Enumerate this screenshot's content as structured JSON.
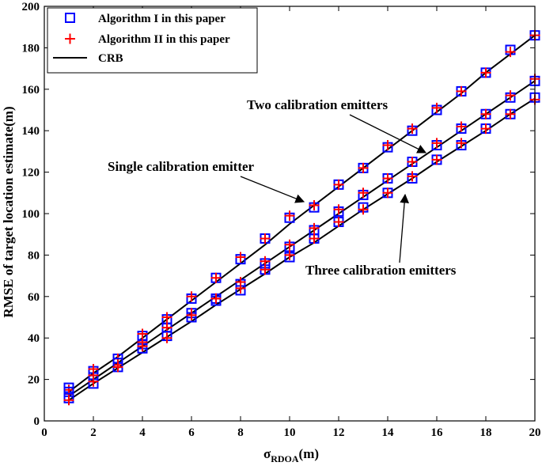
{
  "chart_data": {
    "type": "line",
    "xlabel": "σ",
    "xlabel_sub": "RDOA",
    "xlabel_unit": "(m)",
    "ylabel": "RMSE of target location estimate(m)",
    "xlim": [
      0,
      20
    ],
    "ylim": [
      0,
      200
    ],
    "xticks": [
      0,
      2,
      4,
      6,
      8,
      10,
      12,
      14,
      16,
      18,
      20
    ],
    "yticks": [
      0,
      20,
      40,
      60,
      80,
      100,
      120,
      140,
      160,
      180,
      200
    ],
    "grid": false,
    "legend_position": "top-left",
    "legend": [
      {
        "label": "Algorithm I in this paper",
        "marker": "square",
        "color": "#0000ff"
      },
      {
        "label": "Algorithm II in this paper",
        "marker": "plus",
        "color": "#ff0000"
      },
      {
        "label": "CRB",
        "marker": "line",
        "color": "#000000"
      }
    ],
    "x": [
      1,
      2,
      3,
      4,
      5,
      6,
      7,
      8,
      9,
      10,
      11,
      12,
      13,
      14,
      15,
      16,
      17,
      18,
      19,
      20
    ],
    "groups": [
      {
        "annotation": "Single calibration emitter",
        "crb": [
          14,
          23,
          31,
          40,
          49,
          58,
          67,
          76,
          85,
          95,
          104,
          113,
          122,
          131,
          140,
          149,
          158,
          168,
          177,
          186
        ],
        "algorithm1": [
          16,
          24,
          30,
          41,
          49,
          59,
          69,
          78,
          88,
          98,
          103,
          114,
          122,
          132,
          140,
          150,
          159,
          168,
          179,
          186
        ],
        "algorithm2": [
          15,
          25,
          30,
          42,
          50,
          60,
          69,
          79,
          88,
          99,
          104,
          114,
          122,
          133,
          141,
          151,
          159,
          168,
          178,
          186
        ]
      },
      {
        "annotation": "Two calibration emitters",
        "crb": [
          12,
          20,
          28,
          36,
          44,
          52,
          60,
          68,
          76,
          84,
          92,
          100,
          108,
          116,
          124,
          132,
          140,
          148,
          156,
          164
        ],
        "algorithm1": [
          14,
          21,
          28,
          37,
          45,
          52,
          59,
          66,
          76,
          84,
          92,
          101,
          109,
          117,
          125,
          133,
          141,
          148,
          156,
          164
        ],
        "algorithm2": [
          13,
          22,
          27,
          38,
          45,
          52,
          59,
          67,
          77,
          85,
          93,
          102,
          110,
          117,
          125,
          134,
          142,
          148,
          157,
          165
        ]
      },
      {
        "annotation": "Three calibration emitters",
        "crb": [
          10,
          18,
          25.5,
          33,
          40.5,
          48,
          56,
          63.5,
          71,
          79,
          86,
          94,
          102,
          109.5,
          117,
          125,
          132.5,
          140,
          148,
          155.5
        ],
        "algorithm1": [
          11,
          18,
          26,
          35,
          41,
          50,
          58,
          63,
          73,
          79,
          88,
          96,
          103,
          110,
          117,
          126,
          133,
          141,
          148,
          156
        ],
        "algorithm2": [
          10,
          19,
          26,
          36,
          40,
          51,
          59,
          64,
          73,
          80,
          88,
          96,
          102,
          110,
          118,
          126,
          134,
          141,
          148,
          155
        ]
      }
    ]
  }
}
